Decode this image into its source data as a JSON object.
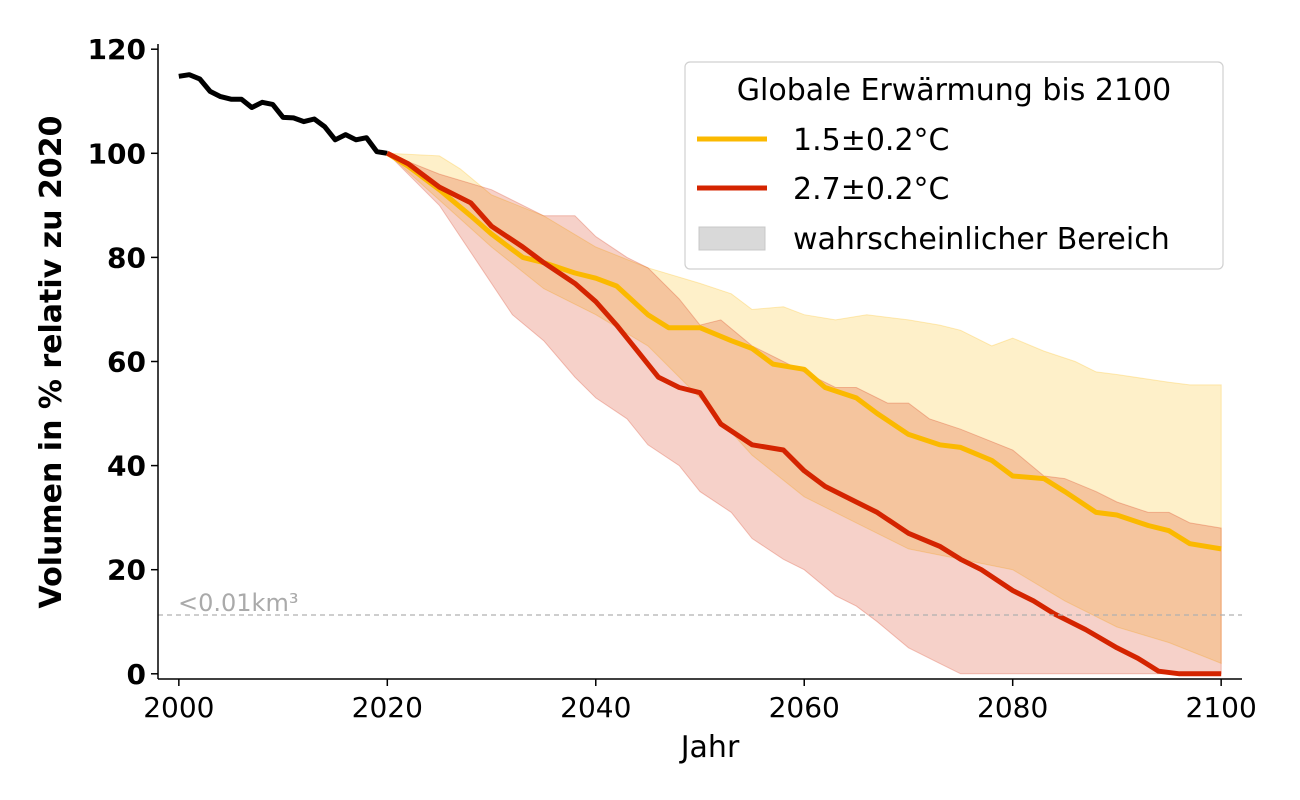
{
  "chart_data": {
    "type": "line",
    "xlabel": "Jahr",
    "ylabel": "Volumen in % relativ zu 2020",
    "xlim": [
      1998,
      2102
    ],
    "ylim": [
      -1,
      121
    ],
    "xticks": [
      2000,
      2020,
      2040,
      2060,
      2080,
      2100
    ],
    "yticks": [
      0,
      20,
      40,
      60,
      80,
      100,
      120
    ],
    "grid": false,
    "legend": {
      "title": "Globale Erwärmung bis 2100",
      "placement": "top-right",
      "entries": [
        "1.5±0.2°C",
        "2.7±0.2°C",
        "wahrscheinlicher Bereich"
      ]
    },
    "threshold": {
      "value": 11.3,
      "label": "<0.01km³",
      "color": "#b0b0b0"
    },
    "colors": {
      "observed": "#000000",
      "low": "#fbb900",
      "high": "#d42400",
      "range_legend": "#d9d9d9"
    },
    "observed": {
      "x": [
        2000,
        2001,
        2002,
        2003,
        2004,
        2005,
        2006,
        2007,
        2008,
        2009,
        2010,
        2011,
        2012,
        2013,
        2014,
        2015,
        2016,
        2017,
        2018,
        2019,
        2020
      ],
      "y": [
        114.8,
        115.1,
        114.3,
        111.9,
        110.9,
        110.4,
        110.4,
        108.8,
        109.8,
        109.4,
        106.9,
        106.8,
        106.1,
        106.6,
        105.1,
        102.6,
        103.6,
        102.6,
        103.0,
        100.3,
        100.0
      ]
    },
    "series": [
      {
        "name": "1.5±0.2°C",
        "median": {
          "x": [
            2020,
            2022,
            2025,
            2028,
            2030,
            2033,
            2035,
            2038,
            2040,
            2042,
            2045,
            2047,
            2050,
            2053,
            2055,
            2057,
            2060,
            2062,
            2065,
            2067,
            2070,
            2073,
            2075,
            2078,
            2080,
            2083,
            2085,
            2088,
            2090,
            2093,
            2095,
            2097,
            2100
          ],
          "y": [
            100,
            97.5,
            93,
            88,
            84.5,
            80,
            79,
            77,
            76,
            74.5,
            69,
            66.5,
            66.5,
            64,
            62.5,
            59.5,
            58.5,
            55,
            53,
            50,
            46,
            44,
            43.5,
            41,
            38,
            37.5,
            35,
            31,
            30.5,
            28.5,
            27.5,
            25,
            24
          ]
        },
        "range_upper": {
          "x": [
            2020,
            2025,
            2027,
            2030,
            2035,
            2040,
            2045,
            2050,
            2053,
            2055,
            2058,
            2060,
            2063,
            2066,
            2070,
            2073,
            2075,
            2078,
            2080,
            2083,
            2086,
            2088,
            2090,
            2095,
            2097,
            2100
          ],
          "y": [
            100,
            99.5,
            97,
            92,
            88,
            82,
            78,
            75,
            73,
            70,
            70.5,
            69,
            68,
            69,
            68,
            67,
            66,
            63,
            64.5,
            62,
            60,
            58,
            57.5,
            56,
            55.5,
            55.5
          ]
        },
        "range_lower": {
          "x": [
            2020,
            2025,
            2030,
            2035,
            2040,
            2045,
            2050,
            2055,
            2060,
            2065,
            2070,
            2075,
            2080,
            2085,
            2090,
            2095,
            2100
          ],
          "y": [
            100,
            91,
            82,
            74,
            69,
            63,
            53,
            42,
            34,
            29,
            24,
            22,
            20,
            14,
            9,
            6,
            2
          ]
        }
      },
      {
        "name": "2.7±0.2°C",
        "median": {
          "x": [
            2020,
            2022,
            2025,
            2028,
            2030,
            2033,
            2035,
            2038,
            2040,
            2042,
            2044,
            2046,
            2048,
            2050,
            2052,
            2055,
            2058,
            2060,
            2062,
            2065,
            2067,
            2070,
            2073,
            2075,
            2077,
            2080,
            2082,
            2084,
            2087,
            2090,
            2092,
            2094,
            2096,
            2100
          ],
          "y": [
            100,
            98,
            93.5,
            90.5,
            86,
            82,
            79,
            75,
            71.5,
            67,
            62,
            57,
            55,
            54,
            48,
            44,
            43,
            39,
            36,
            33,
            31,
            27,
            24.5,
            22,
            20,
            16,
            14,
            11.5,
            8.5,
            5,
            3,
            0.5,
            0,
            0
          ]
        },
        "range_upper": {
          "x": [
            2020,
            2025,
            2030,
            2035,
            2038,
            2040,
            2043,
            2045,
            2048,
            2050,
            2052,
            2055,
            2060,
            2063,
            2065,
            2068,
            2070,
            2072,
            2075,
            2080,
            2083,
            2085,
            2088,
            2090,
            2093,
            2095,
            2097,
            2100
          ],
          "y": [
            100,
            96,
            93,
            88,
            88,
            84,
            80,
            78,
            72,
            67,
            68,
            63,
            58,
            55,
            55,
            52,
            52,
            49,
            47,
            43,
            38,
            37.5,
            35,
            33,
            31,
            31,
            29,
            28
          ]
        },
        "range_lower": {
          "x": [
            2020,
            2025,
            2029,
            2032,
            2035,
            2038,
            2040,
            2043,
            2045,
            2048,
            2050,
            2053,
            2055,
            2058,
            2060,
            2063,
            2065,
            2067,
            2070,
            2073,
            2075,
            2100
          ],
          "y": [
            100,
            90,
            78,
            69,
            64,
            57,
            53,
            49,
            44,
            40,
            35,
            31,
            26,
            22,
            20,
            15,
            13,
            10,
            5,
            2,
            0,
            0
          ]
        }
      }
    ]
  }
}
